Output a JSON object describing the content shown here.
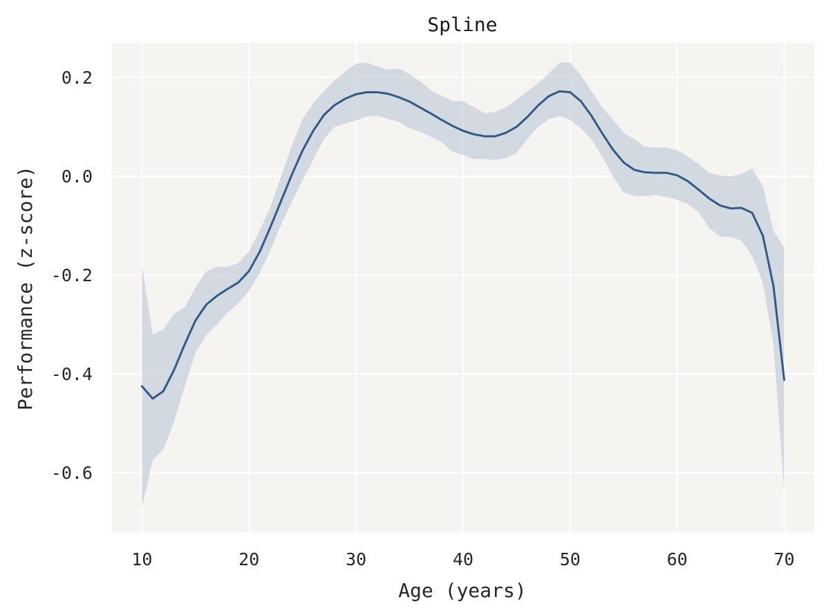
{
  "chart_data": {
    "type": "line",
    "title": "Spline",
    "xlabel": "Age (years)",
    "ylabel": "Performance (z-score)",
    "xlim": [
      7.2,
      72.8
    ],
    "ylim": [
      -0.72,
      0.27
    ],
    "xticks": [
      10,
      20,
      30,
      40,
      50,
      60,
      70
    ],
    "xtick_labels": [
      "10",
      "20",
      "30",
      "40",
      "50",
      "60",
      "70"
    ],
    "yticks": [
      0.2,
      0.0,
      -0.2,
      -0.4,
      -0.6
    ],
    "ytick_labels": [
      "0.2",
      "0.0",
      "-0.2",
      "-0.4",
      "-0.6"
    ],
    "grid": true,
    "colors": {
      "plot_background": "#f6f4f0",
      "line": "#2e5a87",
      "band": "#c5d0db"
    },
    "series": [
      {
        "x": [
          10,
          11,
          12,
          13,
          14,
          15,
          16,
          17,
          18,
          19,
          20,
          21,
          22,
          23,
          24,
          25,
          26,
          27,
          28,
          29,
          30,
          31,
          32,
          33,
          34,
          35,
          36,
          37,
          38,
          39,
          40,
          41,
          42,
          43,
          44,
          45,
          46,
          47,
          48,
          49,
          50,
          51,
          52,
          53,
          54,
          55,
          56,
          57,
          58,
          59,
          60,
          61,
          62,
          63,
          64,
          65,
          66,
          67,
          68,
          69,
          70
        ],
        "y": [
          -0.425,
          -0.45,
          -0.435,
          -0.392,
          -0.34,
          -0.292,
          -0.26,
          -0.242,
          -0.228,
          -0.215,
          -0.192,
          -0.153,
          -0.103,
          -0.05,
          0.003,
          0.052,
          0.092,
          0.124,
          0.144,
          0.157,
          0.166,
          0.17,
          0.17,
          0.167,
          0.16,
          0.151,
          0.139,
          0.127,
          0.114,
          0.102,
          0.092,
          0.085,
          0.081,
          0.081,
          0.088,
          0.1,
          0.12,
          0.143,
          0.162,
          0.172,
          0.17,
          0.152,
          0.122,
          0.087,
          0.054,
          0.028,
          0.013,
          0.008,
          0.007,
          0.007,
          0.002,
          -0.01,
          -0.027,
          -0.045,
          -0.059,
          -0.065,
          -0.064,
          -0.074,
          -0.12,
          -0.222,
          -0.412
        ],
        "upper": [
          -0.18,
          -0.32,
          -0.31,
          -0.278,
          -0.265,
          -0.225,
          -0.193,
          -0.183,
          -0.183,
          -0.176,
          -0.152,
          -0.11,
          -0.063,
          0.0,
          0.062,
          0.115,
          0.148,
          0.172,
          0.194,
          0.212,
          0.228,
          0.23,
          0.222,
          0.216,
          0.218,
          0.207,
          0.192,
          0.174,
          0.163,
          0.152,
          0.152,
          0.14,
          0.128,
          0.13,
          0.14,
          0.155,
          0.172,
          0.188,
          0.208,
          0.23,
          0.23,
          0.205,
          0.172,
          0.14,
          0.115,
          0.088,
          0.075,
          0.06,
          0.058,
          0.058,
          0.053,
          0.04,
          0.025,
          0.007,
          0.002,
          0.0,
          0.005,
          0.016,
          -0.02,
          -0.11,
          -0.145
        ],
        "lower": [
          -0.67,
          -0.575,
          -0.553,
          -0.497,
          -0.425,
          -0.357,
          -0.322,
          -0.3,
          -0.276,
          -0.257,
          -0.232,
          -0.196,
          -0.15,
          -0.098,
          -0.052,
          -0.008,
          0.033,
          0.076,
          0.1,
          0.107,
          0.113,
          0.121,
          0.122,
          0.116,
          0.11,
          0.097,
          0.09,
          0.08,
          0.069,
          0.05,
          0.043,
          0.035,
          0.035,
          0.033,
          0.037,
          0.047,
          0.075,
          0.1,
          0.115,
          0.122,
          0.114,
          0.098,
          0.074,
          0.04,
          0.0,
          -0.033,
          -0.04,
          -0.04,
          -0.038,
          -0.042,
          -0.048,
          -0.056,
          -0.072,
          -0.105,
          -0.122,
          -0.123,
          -0.13,
          -0.162,
          -0.215,
          -0.34,
          -0.64
        ]
      }
    ]
  }
}
